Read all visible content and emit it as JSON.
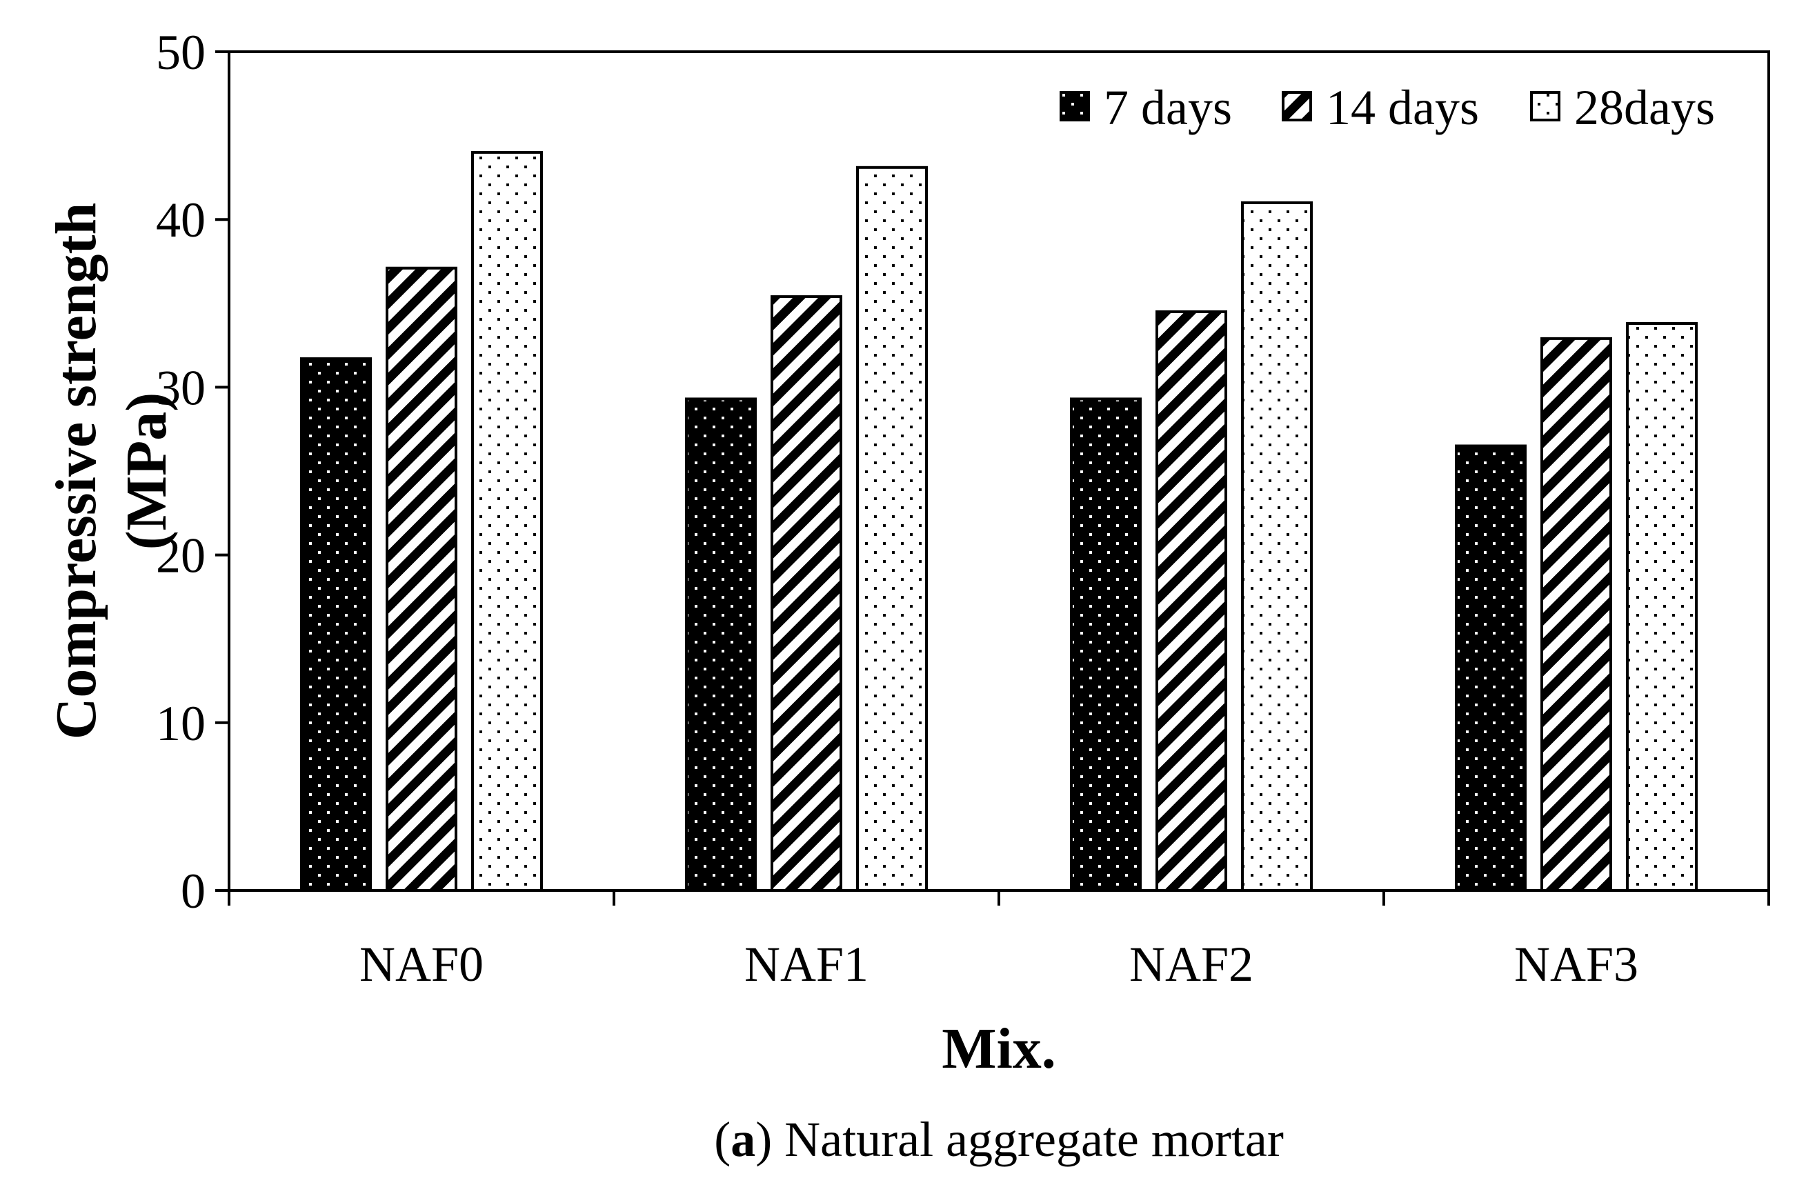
{
  "chart_data": {
    "type": "bar",
    "title": "",
    "xlabel": "Mix.",
    "ylabel_line1": "Compressive strength",
    "ylabel_line2": "(MPa)",
    "categories": [
      "NAF0",
      "NAF1",
      "NAF2",
      "NAF3"
    ],
    "series": [
      {
        "name": "7 days",
        "pattern": "dots-on-black",
        "values": [
          31.7,
          29.3,
          29.3,
          26.5
        ]
      },
      {
        "name": "14 days",
        "pattern": "diagonal-stripes",
        "values": [
          37.1,
          35.4,
          34.5,
          32.9
        ]
      },
      {
        "name": "28days",
        "pattern": "dots-on-white",
        "values": [
          44.0,
          43.1,
          41.0,
          33.8
        ]
      }
    ],
    "ylim": [
      0,
      50
    ],
    "yticks": [
      0,
      10,
      20,
      30,
      40,
      50
    ],
    "grid": false,
    "legend_position": "top-right"
  },
  "caption": {
    "label": "a",
    "text": " Natural aggregate mortar"
  }
}
